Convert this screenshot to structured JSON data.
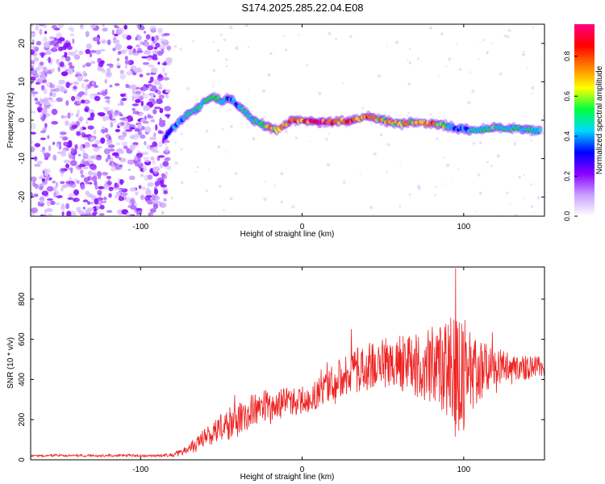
{
  "title": "S174.2025.285.22.04.E08",
  "colorbar": {
    "label": "Normalized spectral amplitude",
    "ticks": [
      "0.0",
      "0.2",
      "0.4",
      "0.6",
      "0.8"
    ],
    "tick_values": [
      0.0,
      0.2,
      0.4,
      0.6,
      0.8
    ],
    "range": [
      0,
      0.96
    ],
    "colormap": [
      "#ffffff",
      "#c8a0ff",
      "#8a00ff",
      "#0000ff",
      "#00d8ff",
      "#00ff40",
      "#ffff00",
      "#ff8000",
      "#ff0000",
      "#ff0080"
    ]
  },
  "chart_data": [
    {
      "type": "heatmap",
      "title": "S174.2025.285.22.04.E08",
      "xlabel": "Height of straight line (km)",
      "ylabel": "Frequency (Hz)",
      "xlim": [
        -168,
        150
      ],
      "ylim": [
        -25,
        25
      ],
      "x_ticks": [
        -100,
        0,
        100
      ],
      "y_ticks": [
        -20,
        -10,
        0,
        10,
        20
      ],
      "noise_region_x": [
        -168,
        -82
      ],
      "ridge": {
        "x": [
          -85,
          -80,
          -75,
          -70,
          -65,
          -60,
          -55,
          -50,
          -45,
          -40,
          -35,
          -30,
          -25,
          -20,
          -15,
          -10,
          -5,
          0,
          10,
          20,
          30,
          40,
          50,
          60,
          70,
          80,
          90,
          95,
          100,
          110,
          120,
          130,
          140,
          148
        ],
        "freq_hz": [
          -5,
          -2,
          0,
          2,
          3,
          5,
          6,
          5,
          6,
          4,
          2,
          0,
          -1,
          -2,
          -2.5,
          -1,
          0,
          0,
          -0.5,
          -0.5,
          0,
          1,
          0,
          -1,
          -0.5,
          -1,
          -1.5,
          -2,
          -2.5,
          -2.5,
          -2,
          -2,
          -2.5,
          -3
        ],
        "amplitude": [
          0.3,
          0.4,
          0.45,
          0.5,
          0.55,
          0.55,
          0.5,
          0.5,
          0.45,
          0.45,
          0.5,
          0.55,
          0.6,
          0.65,
          0.7,
          0.75,
          0.8,
          0.85,
          0.9,
          0.85,
          0.8,
          0.75,
          0.7,
          0.7,
          0.75,
          0.8,
          0.5,
          0.4,
          0.45,
          0.5,
          0.55,
          0.5,
          0.5,
          0.45
        ]
      }
    },
    {
      "type": "line",
      "xlabel": "Height of straight line (km)",
      "ylabel": "SNR (10 * v/v)",
      "xlim": [
        -168,
        150
      ],
      "ylim": [
        0,
        960
      ],
      "x_ticks": [
        -100,
        0,
        100
      ],
      "y_ticks": [
        0,
        200,
        400,
        600,
        800
      ],
      "series": [
        {
          "name": "SNR",
          "color": "#ee2222",
          "x": [
            -168,
            -150,
            -130,
            -110,
            -90,
            -80,
            -75,
            -70,
            -65,
            -60,
            -55,
            -50,
            -45,
            -40,
            -35,
            -30,
            -25,
            -20,
            -15,
            -10,
            -5,
            0,
            5,
            10,
            15,
            20,
            25,
            30,
            35,
            40,
            45,
            50,
            55,
            60,
            65,
            70,
            75,
            80,
            85,
            90,
            95,
            100,
            105,
            110,
            115,
            120,
            125,
            130,
            135,
            140,
            145,
            150
          ],
          "y": [
            20,
            22,
            20,
            22,
            20,
            25,
            35,
            55,
            80,
            110,
            140,
            160,
            180,
            210,
            230,
            245,
            260,
            270,
            280,
            290,
            290,
            300,
            310,
            330,
            360,
            390,
            420,
            440,
            450,
            460,
            470,
            480,
            470,
            480,
            475,
            480,
            470,
            460,
            450,
            430,
            420,
            430,
            440,
            450,
            455,
            460,
            465,
            460,
            455,
            460,
            465,
            460
          ],
          "amplitude": [
            5,
            6,
            6,
            6,
            6,
            10,
            20,
            30,
            40,
            50,
            60,
            70,
            80,
            85,
            90,
            90,
            85,
            80,
            75,
            70,
            70,
            70,
            70,
            75,
            80,
            90,
            100,
            110,
            115,
            120,
            120,
            130,
            130,
            140,
            150,
            160,
            180,
            200,
            240,
            290,
            330,
            290,
            200,
            150,
            110,
            90,
            80,
            70,
            60,
            60,
            55,
            50
          ]
        }
      ]
    }
  ]
}
